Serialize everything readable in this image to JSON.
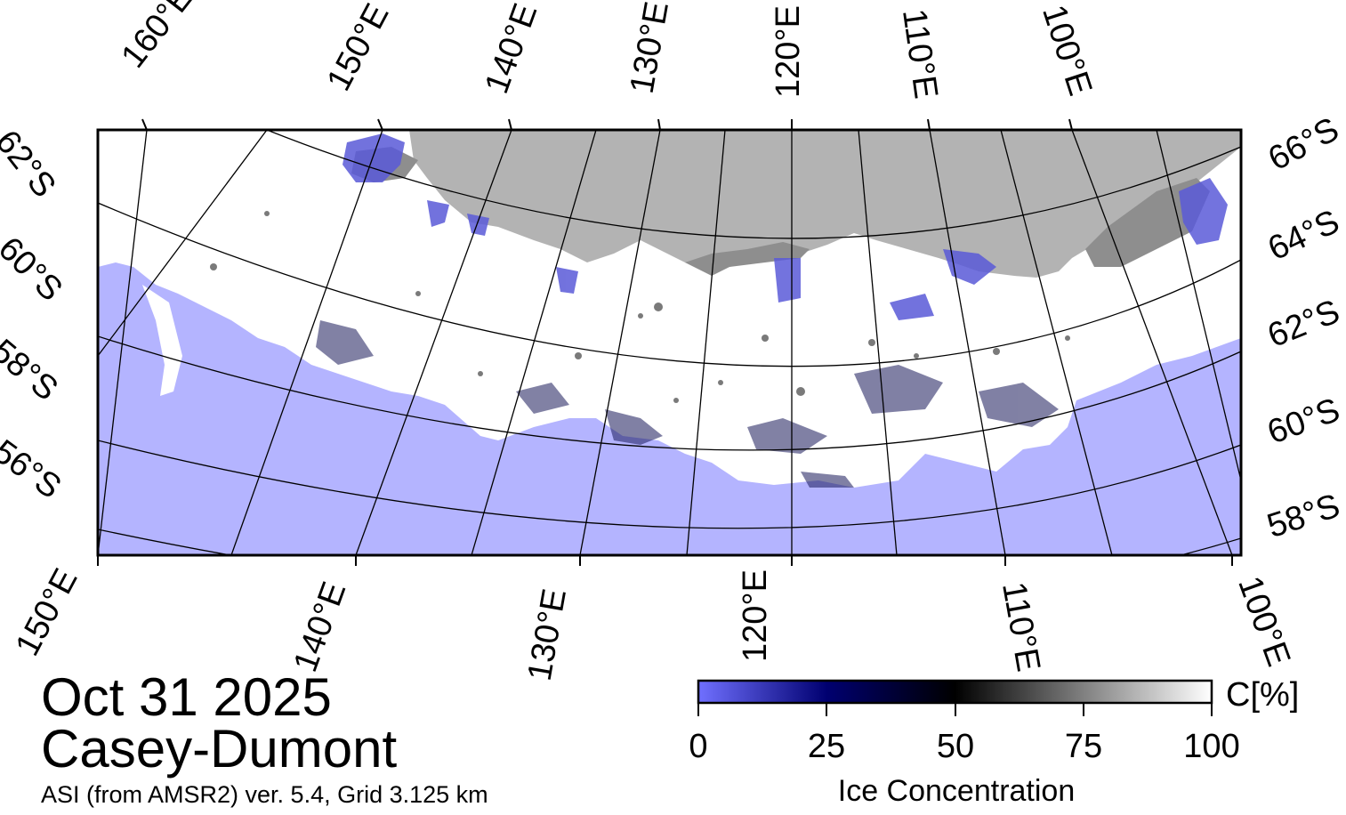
{
  "map": {
    "date": "Oct 31 2025",
    "region": "Casey-Dumont",
    "source": "ASI (from AMSR2) ver. 5.4,  Grid 3.125 km",
    "colors": {
      "open_water": "#b4b4ff",
      "land": "#b3b3b3",
      "ice_shelf": "#8e8e8e",
      "sea_ice": "#ffffff",
      "grid": "#000000"
    },
    "top_lon_labels": [
      "160°E",
      "150°E",
      "140°E",
      "130°E",
      "120°E",
      "110°E",
      "100°E"
    ],
    "bottom_lon_labels": [
      "150°E",
      "140°E",
      "130°E",
      "120°E",
      "110°E",
      "100°E"
    ],
    "left_lat_labels": [
      "62°S",
      "60°S",
      "58°S",
      "56°S"
    ],
    "right_lat_labels": [
      "66°S",
      "64°S",
      "62°S",
      "60°S",
      "58°S"
    ]
  },
  "colorbar": {
    "title": "Ice Concentration",
    "unit": "C[%]",
    "ticks": [
      "0",
      "25",
      "50",
      "75",
      "100"
    ],
    "range": [
      0,
      100
    ],
    "stops": [
      "#7070ff",
      "#000070",
      "#000000",
      "#808080",
      "#ffffff"
    ]
  }
}
